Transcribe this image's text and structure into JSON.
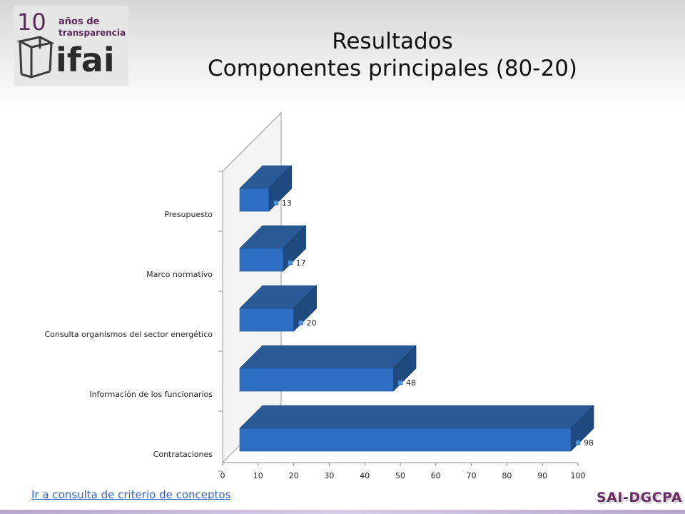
{
  "header": {
    "logo": {
      "number": "10",
      "line1": "años de",
      "line2": "transparencia",
      "word": "ifai"
    },
    "title_line1": "Resultados",
    "title_line2": "Componentes principales (80-20)"
  },
  "chart_data": {
    "type": "bar",
    "orientation": "horizontal",
    "style": "3d",
    "categories": [
      "Presupuesto",
      "Marco normativo",
      "Consulta organismos del sector energético",
      "Información de los funcionarios",
      "Contrataciones"
    ],
    "values": [
      13,
      17,
      20,
      48,
      98
    ],
    "data_labels": [
      "13",
      "17",
      "20",
      "48",
      "98"
    ],
    "xlim": [
      0,
      100
    ],
    "x_ticks": [
      "0",
      "10",
      "20",
      "30",
      "40",
      "50",
      "60",
      "70",
      "80",
      "90",
      "100"
    ],
    "title": "",
    "xlabel": "",
    "ylabel": "",
    "grid": false,
    "legend": false,
    "colors": {
      "bar_front": "#2e6fc4",
      "bar_top": "#2a5a96",
      "bar_side": "#1f4a80",
      "marker": "#4f95e0"
    }
  },
  "footer": {
    "link_text": "Ir a consulta de criterio de conceptos",
    "brand": "SAI-DGCPA"
  },
  "colors": {
    "brand": "#6b2a63",
    "link": "#3366cc",
    "logo": "#5c2a5a"
  }
}
